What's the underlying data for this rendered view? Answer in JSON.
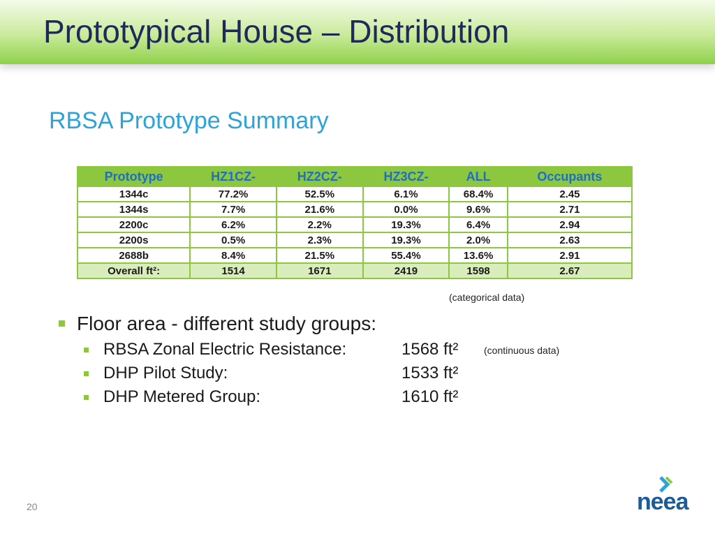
{
  "header": {
    "title": "Prototypical House – Distribution"
  },
  "subtitle": "RBSA Prototype Summary",
  "table": {
    "columns": [
      "Prototype",
      "HZ1CZ-",
      "HZ2CZ-",
      "HZ3CZ-",
      "ALL",
      "Occupants"
    ],
    "rows": [
      [
        "1344c",
        "77.2%",
        "52.5%",
        "6.1%",
        "68.4%",
        "2.45"
      ],
      [
        "1344s",
        "7.7%",
        "21.6%",
        "0.0%",
        "9.6%",
        "2.71"
      ],
      [
        "2200c",
        "6.2%",
        "2.2%",
        "19.3%",
        "6.4%",
        "2.94"
      ],
      [
        "2200s",
        "0.5%",
        "2.3%",
        "19.3%",
        "2.0%",
        "2.63"
      ],
      [
        "2688b",
        "8.4%",
        "21.5%",
        "55.4%",
        "13.6%",
        "2.91"
      ],
      [
        "Overall ft²:",
        "1514",
        "1671",
        "2419",
        "1598",
        "2.67"
      ]
    ],
    "note": "(categorical data)"
  },
  "bullets": {
    "text": "Floor area - different study groups:",
    "items": [
      {
        "label": "RBSA Zonal Electric Resistance:",
        "value": "1568 ft²"
      },
      {
        "label": "DHP Pilot Study:",
        "value": "1533 ft²"
      },
      {
        "label": "DHP Metered Group:",
        "value": "1610 ft²"
      }
    ],
    "note": "(continuous data)"
  },
  "footer": {
    "page_number": "20",
    "logo": "neea"
  }
}
